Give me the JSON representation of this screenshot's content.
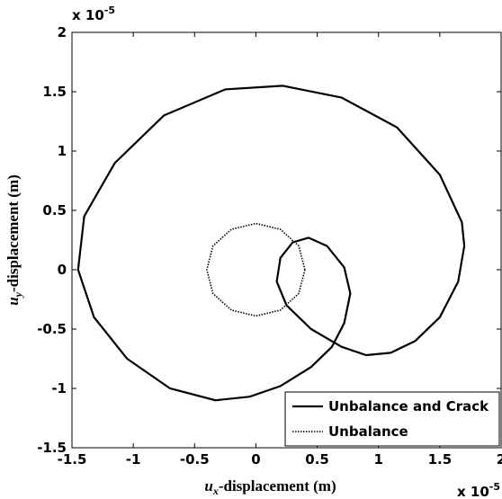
{
  "chart_data": {
    "type": "line",
    "xlabel": {
      "main": "u",
      "sub": "x",
      "rest": "-displacement (m)"
    },
    "ylabel": {
      "main": "u",
      "sub": "y",
      "rest": "-displacement (m)"
    },
    "x_multiplier": {
      "base": "x 10",
      "exp": "-5"
    },
    "y_multiplier": {
      "base": "x 10",
      "exp": "-5"
    },
    "xlim": [
      -1.5,
      2
    ],
    "ylim": [
      -1.5,
      2
    ],
    "xticks": [
      -1.5,
      -1,
      -0.5,
      0,
      0.5,
      1,
      1.5,
      2
    ],
    "yticks": [
      -1.5,
      -1,
      -0.5,
      0,
      0.5,
      1,
      1.5,
      2
    ],
    "grid": false,
    "legend": "lower right",
    "series": [
      {
        "name": "Unbalance and Crack",
        "color": "#000000",
        "style": "solid",
        "x": [
          0.22,
          0.7,
          1.15,
          1.5,
          1.68,
          1.7,
          1.65,
          1.5,
          1.3,
          1.1,
          0.9,
          0.7,
          0.45,
          0.25,
          0.17,
          0.2,
          0.3,
          0.43,
          0.58,
          0.72,
          0.77,
          0.72,
          0.62,
          0.45,
          0.2,
          -0.05,
          -0.33,
          -0.7,
          -1.05,
          -1.32,
          -1.45,
          -1.4,
          -1.15,
          -0.75,
          -0.25,
          0.22
        ],
        "y": [
          1.55,
          1.45,
          1.2,
          0.8,
          0.4,
          0.2,
          -0.1,
          -0.4,
          -0.6,
          -0.7,
          -0.72,
          -0.65,
          -0.5,
          -0.3,
          -0.1,
          0.1,
          0.23,
          0.27,
          0.2,
          0.02,
          -0.2,
          -0.45,
          -0.65,
          -0.82,
          -0.98,
          -1.07,
          -1.1,
          -1.0,
          -0.75,
          -0.4,
          0,
          0.45,
          0.9,
          1.3,
          1.52,
          1.55
        ]
      },
      {
        "name": "Unbalance",
        "color": "#000000",
        "style": "dotted",
        "x": [
          0.4,
          0.35,
          0.2,
          0,
          -0.2,
          -0.35,
          -0.4,
          -0.35,
          -0.2,
          0,
          0.2,
          0.35,
          0.4
        ],
        "y": [
          0,
          0.2,
          0.34,
          0.39,
          0.34,
          0.2,
          0,
          -0.2,
          -0.34,
          -0.39,
          -0.34,
          -0.2,
          0
        ]
      }
    ]
  }
}
